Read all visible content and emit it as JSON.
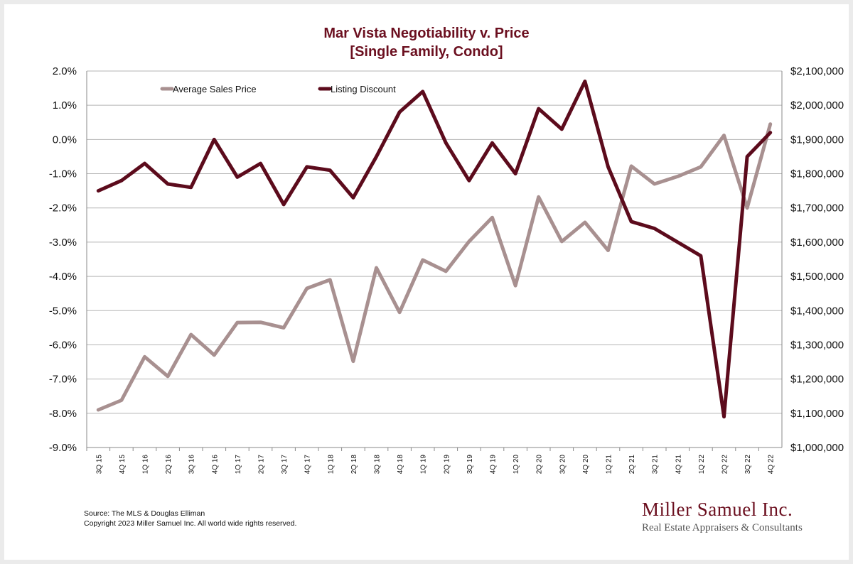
{
  "footer": {
    "source": "Source: The MLS & Douglas Elliman",
    "copyright": "Copyright 2023 Miller Samuel Inc.  All world wide rights reserved."
  },
  "brand": {
    "name": "Miller Samuel Inc.",
    "tagline": "Real Estate Appraisers & Consultants",
    "color": "#6b0f1f"
  },
  "chart_data": {
    "type": "line",
    "title": "Mar Vista Negotiability v. Price",
    "subtitle": "[Single Family, Condo]",
    "categories": [
      "3Q 15",
      "4Q 15",
      "1Q 16",
      "2Q 16",
      "3Q 16",
      "4Q 16",
      "1Q 17",
      "2Q 17",
      "3Q 17",
      "4Q 17",
      "1Q 18",
      "2Q 18",
      "3Q 18",
      "4Q 18",
      "1Q 19",
      "2Q 19",
      "3Q 19",
      "4Q 19",
      "1Q 20",
      "2Q 20",
      "3Q 20",
      "4Q 20",
      "1Q 21",
      "2Q 21",
      "3Q 21",
      "4Q 21",
      "1Q 22",
      "2Q 22",
      "3Q 22",
      "4Q 22"
    ],
    "left_axis": {
      "ylim": [
        -9.0,
        2.0
      ],
      "ticks": [
        "2.0%",
        "1.0%",
        "0.0%",
        "-1.0%",
        "-2.0%",
        "-3.0%",
        "-4.0%",
        "-5.0%",
        "-6.0%",
        "-7.0%",
        "-8.0%",
        "-9.0%"
      ]
    },
    "right_axis": {
      "ylim": [
        1000000,
        2100000
      ],
      "ticks": [
        "$2,100,000",
        "$2,000,000",
        "$1,900,000",
        "$1,800,000",
        "$1,700,000",
        "$1,600,000",
        "$1,500,000",
        "$1,400,000",
        "$1,300,000",
        "$1,200,000",
        "$1,100,000",
        "$1,000,000"
      ]
    },
    "series": [
      {
        "name": "Average Sales Price",
        "axis": "right",
        "color": "#a89090",
        "values": [
          1110000,
          1138000,
          1265000,
          1208000,
          1330000,
          1270000,
          1365000,
          1366000,
          1350000,
          1465000,
          1490000,
          1252000,
          1525000,
          1395000,
          1548000,
          1515000,
          1602000,
          1672000,
          1473000,
          1732000,
          1602000,
          1658000,
          1576000,
          1822000,
          1770000,
          1792000,
          1820000,
          1912000,
          1700000,
          1945000
        ]
      },
      {
        "name": "Listing Discount",
        "axis": "left",
        "color": "#5c0b1c",
        "values": [
          -1.5,
          -1.2,
          -0.7,
          -1.3,
          -1.4,
          0.0,
          -1.1,
          -0.7,
          -1.9,
          -0.8,
          -0.9,
          -1.7,
          -0.5,
          0.8,
          1.4,
          -0.1,
          -1.2,
          -0.1,
          -1.0,
          0.9,
          0.3,
          1.7,
          -0.8,
          -2.4,
          -2.6,
          -3.0,
          -3.4,
          -8.1,
          -0.5,
          0.2
        ]
      }
    ],
    "grid": true,
    "legend": "top-left"
  }
}
